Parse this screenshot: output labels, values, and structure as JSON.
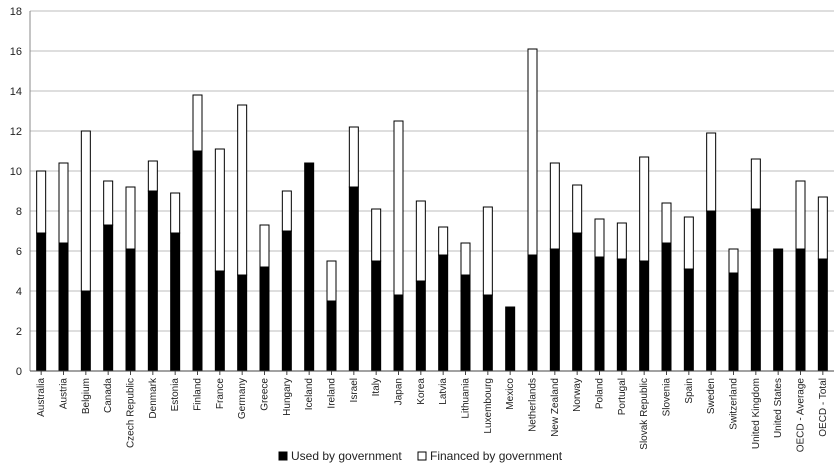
{
  "chart_data": {
    "type": "bar",
    "stacked": true,
    "ylim": [
      0,
      18
    ],
    "yticks": [
      "0",
      "2",
      "4",
      "6",
      "8",
      "10",
      "12",
      "14",
      "16",
      "18"
    ],
    "grid": true,
    "legend_position": "bottom",
    "categories": [
      "Australia",
      "Austria",
      "Belgium",
      "Canada",
      "Czech Republic",
      "Denmark",
      "Estonia",
      "Finland",
      "France",
      "Germany",
      "Greece",
      "Hungary",
      "Iceland",
      "Ireland",
      "Israel",
      "Italy",
      "Japan",
      "Korea",
      "Latvia",
      "Lithuania",
      "Luxembourg",
      "Mexico",
      "Netherlands",
      "New Zealand",
      "Norway",
      "Poland",
      "Portugal",
      "Slovak Republic",
      "Slovenia",
      "Spain",
      "Sweden",
      "Switzerland",
      "United Kingdom",
      "United States",
      "OECD - Average",
      "OECD - Total"
    ],
    "series": [
      {
        "name": "Used by government",
        "color": "#000000",
        "values": [
          6.9,
          6.4,
          4.0,
          7.3,
          6.1,
          9.0,
          6.9,
          11.0,
          5.0,
          4.8,
          5.2,
          7.0,
          10.4,
          3.5,
          9.2,
          5.5,
          3.8,
          4.5,
          5.8,
          4.8,
          3.8,
          3.2,
          5.8,
          6.1,
          6.9,
          5.7,
          5.6,
          5.5,
          6.4,
          5.1,
          8.0,
          4.9,
          8.1,
          6.1,
          6.1,
          5.6
        ]
      },
      {
        "name": "Financed by government",
        "color": "#ffffff",
        "values": [
          3.1,
          4.0,
          8.0,
          2.2,
          3.1,
          1.5,
          2.0,
          2.8,
          6.1,
          8.5,
          2.1,
          2.0,
          0.0,
          2.0,
          3.0,
          2.6,
          8.7,
          4.0,
          1.4,
          1.6,
          4.4,
          0.0,
          10.3,
          4.3,
          2.4,
          1.9,
          1.8,
          5.2,
          2.0,
          2.6,
          3.9,
          1.2,
          2.5,
          0.0,
          3.4,
          3.1
        ]
      }
    ]
  }
}
